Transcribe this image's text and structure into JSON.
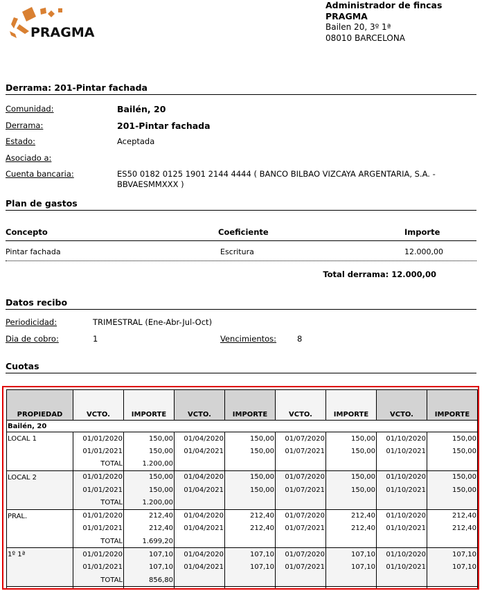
{
  "header": {
    "logo_text": "PRAGMA",
    "company_line1": "Administrador de fincas",
    "company_line2": "PRAGMA",
    "address": "Bailen 20, 3º 1ª",
    "city": "08010 BARCELONA",
    "brand_color": "#d98032"
  },
  "derrama": {
    "title": "Derrama: 201-Pintar fachada",
    "fields": [
      {
        "label": "Comunidad:",
        "value": "Bailén, 20",
        "bold": true
      },
      {
        "label": "Derrama:",
        "value": "201-Pintar fachada",
        "bold": true
      },
      {
        "label": "Estado:",
        "value": "Aceptada"
      },
      {
        "label": "Asociado a:",
        "value": ""
      },
      {
        "label": "Cuenta bancaria:",
        "value": "ES50 0182 0125 1901 2144 4444 ( BANCO BILBAO VIZCAYA ARGENTARIA, S.A. -",
        "value2": "BBVAESMMXXX  )"
      }
    ]
  },
  "plan": {
    "title": "Plan de gastos",
    "headers": [
      "Concepto",
      "Coeficiente",
      "Importe"
    ],
    "rows": [
      [
        "Pintar fachada",
        "Escritura",
        "12.000,00"
      ]
    ],
    "total": "Total derrama: 12.000,00"
  },
  "recibo": {
    "title": "Datos recibo",
    "periodicidad_label": "Periodicidad:",
    "periodicidad": "TRIMESTRAL (Ene-Abr-Jul-Oct)",
    "dia_label": "Dia de cobro:",
    "dia": "1",
    "venc_label": "Vencimientos:",
    "venc": "8"
  },
  "cuotas": {
    "title": "Cuotas",
    "headers": [
      "PROPIEDAD",
      "VCTO.",
      "IMPORTE",
      "VCTO.",
      "IMPORTE",
      "VCTO.",
      "IMPORTE",
      "VCTO.",
      "IMPORTE"
    ],
    "comunidad": "Bailén, 20",
    "total_label": "TOTAL",
    "propiedades": [
      {
        "name": "LOCAL 1",
        "rows": [
          [
            "01/01/2020",
            "150,00",
            "01/04/2020",
            "150,00",
            "01/07/2020",
            "150,00",
            "01/10/2020",
            "150,00"
          ],
          [
            "01/01/2021",
            "150,00",
            "01/04/2021",
            "150,00",
            "01/07/2021",
            "150,00",
            "01/10/2021",
            "150,00"
          ]
        ],
        "total": "1.200,00"
      },
      {
        "name": "LOCAL 2",
        "rows": [
          [
            "01/01/2020",
            "150,00",
            "01/04/2020",
            "150,00",
            "01/07/2020",
            "150,00",
            "01/10/2020",
            "150,00"
          ],
          [
            "01/01/2021",
            "150,00",
            "01/04/2021",
            "150,00",
            "01/07/2021",
            "150,00",
            "01/10/2021",
            "150,00"
          ]
        ],
        "total": "1.200,00"
      },
      {
        "name": "PRAL.",
        "rows": [
          [
            "01/01/2020",
            "212,40",
            "01/04/2020",
            "212,40",
            "01/07/2020",
            "212,40",
            "01/10/2020",
            "212,40"
          ],
          [
            "01/01/2021",
            "212,40",
            "01/04/2021",
            "212,40",
            "01/07/2021",
            "212,40",
            "01/10/2021",
            "212,40"
          ]
        ],
        "total": "1.699,20"
      },
      {
        "name": "1º 1ª",
        "rows": [
          [
            "01/01/2020",
            "107,10",
            "01/04/2020",
            "107,10",
            "01/07/2020",
            "107,10",
            "01/10/2020",
            "107,10"
          ],
          [
            "01/01/2021",
            "107,10",
            "01/04/2021",
            "107,10",
            "01/07/2021",
            "107,10",
            "01/10/2021",
            "107,10"
          ]
        ],
        "total": "856,80"
      }
    ]
  }
}
